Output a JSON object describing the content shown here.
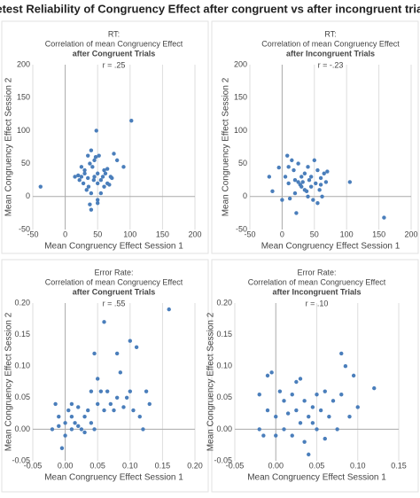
{
  "title": "Retest Reliability of Congruency Effect after congruent vs after incongruent trials",
  "chart_data": [
    {
      "type": "scatter",
      "title": "RT:",
      "subtitle": "Correlation of mean Congruency Effect",
      "condition": "after Congruent Trials",
      "annotation": "r = .25",
      "xlabel": "Mean Congruency Effect Session 1",
      "ylabel": "Mean Congruency Effect Session 2",
      "color": "#4a7ebb",
      "xlim": [
        -50,
        200
      ],
      "xticks": [
        -50,
        0,
        50,
        100,
        150,
        200
      ],
      "ylim": [
        -50,
        200
      ],
      "yticks": [
        -50,
        0,
        50,
        100,
        150,
        200
      ],
      "x": [
        -38,
        102,
        48,
        40,
        35,
        45,
        38,
        42,
        30,
        25,
        22,
        28,
        33,
        40,
        50,
        55,
        60,
        65,
        70,
        75,
        80,
        90,
        45,
        50,
        35,
        40,
        50,
        55,
        60,
        65,
        30,
        25,
        47,
        52,
        36,
        44,
        58,
        62,
        68,
        72,
        20,
        15,
        50,
        38
      ],
      "values": [
        15,
        115,
        100,
        70,
        62,
        55,
        50,
        45,
        35,
        30,
        25,
        20,
        10,
        5,
        20,
        25,
        40,
        42,
        30,
        65,
        55,
        45,
        30,
        35,
        28,
        -20,
        -10,
        5,
        15,
        20,
        40,
        45,
        60,
        62,
        15,
        25,
        30,
        35,
        18,
        28,
        32,
        30,
        -5,
        -12
      ]
    },
    {
      "type": "scatter",
      "title": "RT:",
      "subtitle": "Correlation of mean Congruency Effect",
      "condition": "after Incongruent Trials",
      "annotation": "r = -.23",
      "xlabel": "Mean Congruency Effect Session 1",
      "ylabel": "Mean Congruency Effect Session 2",
      "color": "#4a7ebb",
      "xlim": [
        -50,
        200
      ],
      "xticks": [
        -50,
        0,
        50,
        100,
        150,
        200
      ],
      "ylim": [
        -50,
        200
      ],
      "yticks": [
        -50,
        0,
        50,
        100,
        150,
        200
      ],
      "x": [
        -20,
        -15,
        -5,
        0,
        5,
        8,
        10,
        12,
        15,
        18,
        20,
        22,
        25,
        28,
        30,
        32,
        35,
        38,
        40,
        42,
        45,
        48,
        50,
        52,
        55,
        58,
        60,
        62,
        65,
        68,
        25,
        30,
        35,
        45,
        40,
        20,
        55,
        60,
        105,
        158,
        10,
        70
      ],
      "values": [
        30,
        8,
        44,
        -5,
        30,
        62,
        20,
        -3,
        55,
        40,
        25,
        -25,
        50,
        18,
        30,
        22,
        35,
        8,
        45,
        25,
        15,
        -5,
        55,
        20,
        40,
        10,
        28,
        0,
        35,
        22,
        22,
        15,
        10,
        30,
        0,
        5,
        -10,
        18,
        22,
        -32,
        45,
        38
      ]
    },
    {
      "type": "scatter",
      "title": "Error Rate:",
      "subtitle": "Correlation of mean Congruency Effect",
      "condition": "after Congruent Trials",
      "annotation": "r = .55",
      "xlabel": "Mean Congruency Effect Session 1",
      "ylabel": "Mean Congruency Effect Session 2",
      "color": "#4a7ebb",
      "xlim": [
        -0.05,
        0.2
      ],
      "xticks": [
        -0.05,
        {
          "value": 0,
          "label": "0.00"
        },
        0.05,
        {
          "value": 0.1,
          "label": "0.10"
        },
        0.15,
        {
          "value": 0.2,
          "label": "0.20"
        }
      ],
      "ylim": [
        -0.05,
        0.2
      ],
      "yticks": [
        -0.05,
        {
          "value": 0,
          "label": "0.00"
        },
        0.05,
        {
          "value": 0.1,
          "label": "0.10"
        },
        0.15,
        {
          "value": 0.2,
          "label": "0.20"
        }
      ],
      "x": [
        -0.02,
        -0.015,
        -0.01,
        -0.005,
        0,
        0,
        0.005,
        0.01,
        0.01,
        0.015,
        0.02,
        0.02,
        0.025,
        0.03,
        0.03,
        0.035,
        0.04,
        0.04,
        0.045,
        0.045,
        0.05,
        0.05,
        0.055,
        0.06,
        0.06,
        0.065,
        0.07,
        0.075,
        0.08,
        0.08,
        0.085,
        0.09,
        0.095,
        0.1,
        0.1,
        0.105,
        0.11,
        0.115,
        0.12,
        0.125,
        0.13,
        0.16,
        0.01,
        -0.01
      ],
      "values": [
        0,
        0.04,
        0.02,
        -0.03,
        0.01,
        -0.01,
        0.03,
        0.02,
        0,
        0.01,
        0.005,
        0.035,
        0,
        -0.005,
        0.02,
        0.03,
        0.01,
        0.06,
        0.12,
        0,
        0.04,
        0.08,
        0.06,
        0.17,
        0.03,
        0.06,
        0.04,
        0.03,
        0.12,
        0.05,
        0.09,
        0.035,
        0.05,
        0.14,
        0.06,
        0.03,
        0.13,
        0.02,
        0,
        0.06,
        0.04,
        0.19,
        0.04,
        0.005
      ]
    },
    {
      "type": "scatter",
      "title": "Error Rate:",
      "subtitle": "Correlation of mean Congruency Effect",
      "condition": "after Incongruent Trials",
      "annotation": "r = .10",
      "xlabel": "Mean Congruency Effect Session 1",
      "ylabel": "Mean Congruency Effect Session 2",
      "color": "#4a7ebb",
      "xlim": [
        -0.05,
        0.15
      ],
      "xticks": [
        -0.05,
        {
          "value": 0,
          "label": "0.00"
        },
        0.05,
        {
          "value": 0.1,
          "label": "0.10"
        },
        0.15
      ],
      "ylim": [
        -0.05,
        0.2
      ],
      "yticks": [
        -0.05,
        {
          "value": 0,
          "label": "0.00"
        },
        0.05,
        {
          "value": 0.1,
          "label": "0.10"
        },
        0.15,
        {
          "value": 0.2,
          "label": "0.20"
        }
      ],
      "x": [
        -0.02,
        -0.015,
        -0.01,
        -0.01,
        -0.005,
        0,
        0,
        0.005,
        0.01,
        0.01,
        0.015,
        0.02,
        0.02,
        0.025,
        0.03,
        0.03,
        0.035,
        0.035,
        0.04,
        0.04,
        0.045,
        0.05,
        0.05,
        0.055,
        0.06,
        0.065,
        0.07,
        0.075,
        0.08,
        0.08,
        0.085,
        0.09,
        0.095,
        0.1,
        0.12,
        -0.02,
        0.025,
        0.06,
        0.045
      ],
      "values": [
        0.055,
        -0.01,
        0.085,
        0.03,
        0.09,
        0.02,
        -0.01,
        0.06,
        0.045,
        0,
        0.025,
        0.055,
        -0.01,
        0.03,
        0.01,
        0.08,
        -0.02,
        0.045,
        -0.04,
        0.02,
        0.01,
        0.055,
        0,
        0.03,
        -0.015,
        0.02,
        0.045,
        0,
        0.12,
        0.055,
        0.1,
        0.02,
        0.085,
        0.035,
        0.065,
        0,
        0.075,
        0.06,
        0.035
      ]
    }
  ]
}
